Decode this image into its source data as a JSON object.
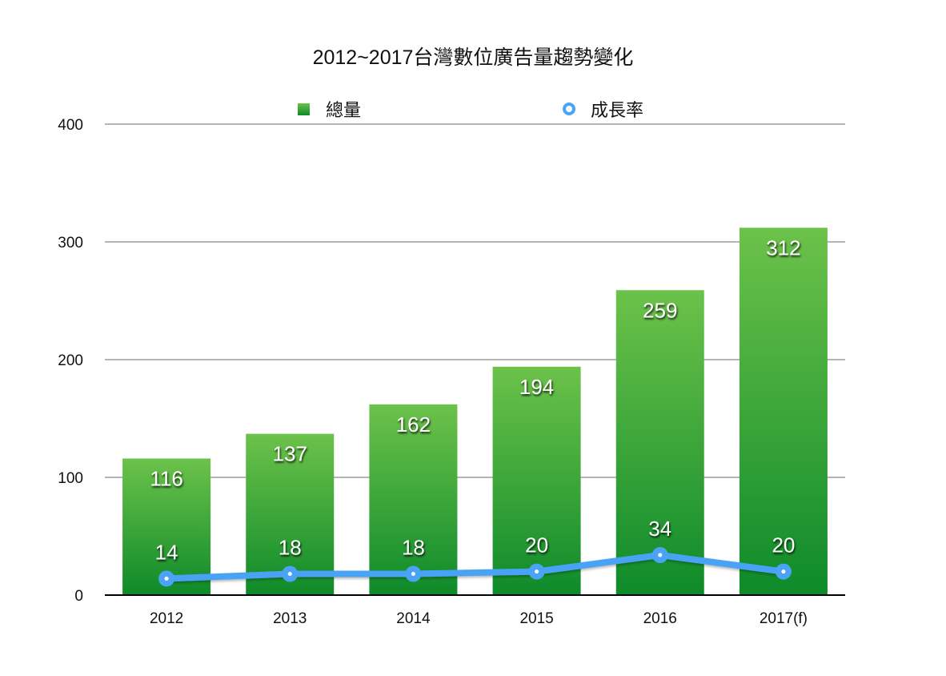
{
  "colors": {
    "bar_top": "#6cc24a",
    "bar_bottom": "#0e8a2a",
    "line": "#4aa3f5",
    "grid": "#b5b5b5",
    "axis": "#000000"
  },
  "chart_data": {
    "type": "bar",
    "title": "2012~2017台灣數位廣告量趨勢變化",
    "categories": [
      "2012",
      "2013",
      "2014",
      "2015",
      "2016",
      "2017(f)"
    ],
    "series": [
      {
        "name": "總量",
        "type": "bar",
        "values": [
          116,
          137,
          162,
          194,
          259,
          312
        ]
      },
      {
        "name": "成長率",
        "type": "line",
        "values": [
          14,
          18,
          18,
          20,
          34,
          20
        ]
      }
    ],
    "ylim": [
      0,
      400
    ],
    "yticks": [
      "0",
      "100",
      "200",
      "300",
      "400"
    ],
    "xlabel": "",
    "ylabel": "",
    "grid": true,
    "legend_position": "top"
  }
}
